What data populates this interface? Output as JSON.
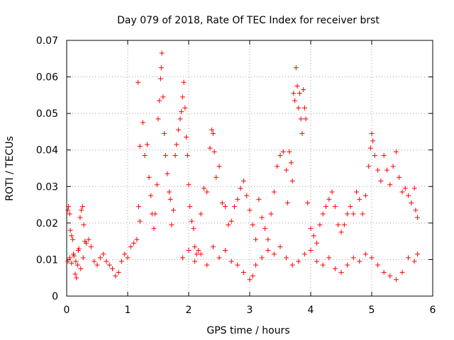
{
  "chart_data": {
    "type": "scatter",
    "title": "Day 079 of 2018, Rate Of TEC Index for receiver brst",
    "xlabel": "GPS time / hours",
    "ylabel": "ROTI / TECUs",
    "xlim": [
      0,
      6
    ],
    "ylim": [
      0,
      0.07
    ],
    "xticks": [
      0,
      1,
      2,
      3,
      4,
      5,
      6
    ],
    "yticks": [
      0,
      0.01,
      0.02,
      0.03,
      0.04,
      0.05,
      0.06,
      0.07
    ],
    "xtick_labels": [
      "0",
      "1",
      "2",
      "3",
      "4",
      "5",
      "6"
    ],
    "ytick_labels": [
      "0",
      "0.01",
      "0.02",
      "0.03",
      "0.04",
      "0.05",
      "0.06",
      "0.07"
    ],
    "grid": true,
    "marker": "+",
    "color": "#ff0000",
    "series": [
      {
        "name": "ROTI",
        "points": [
          [
            0.02,
            0.0235
          ],
          [
            0.03,
            0.0245
          ],
          [
            0.05,
            0.0225
          ],
          [
            0.06,
            0.018
          ],
          [
            0.08,
            0.0165
          ],
          [
            0.1,
            0.0155
          ],
          [
            0.12,
            0.011
          ],
          [
            0.14,
            0.006
          ],
          [
            0.16,
            0.005
          ],
          [
            0.18,
            0.0085
          ],
          [
            0.2,
            0.013
          ],
          [
            0.22,
            0.0215
          ],
          [
            0.24,
            0.0235
          ],
          [
            0.26,
            0.0245
          ],
          [
            0.28,
            0.0195
          ],
          [
            0.3,
            0.015
          ],
          [
            0.02,
            0.0095
          ],
          [
            0.05,
            0.0105
          ],
          [
            0.08,
            0.009
          ],
          [
            0.11,
            0.0115
          ],
          [
            0.15,
            0.0095
          ],
          [
            0.19,
            0.0125
          ],
          [
            0.23,
            0.0075
          ],
          [
            0.27,
            0.0105
          ],
          [
            0.32,
            0.0145
          ],
          [
            0.36,
            0.0155
          ],
          [
            0.4,
            0.0135
          ],
          [
            0.45,
            0.0095
          ],
          [
            0.5,
            0.0085
          ],
          [
            0.55,
            0.0105
          ],
          [
            0.6,
            0.0115
          ],
          [
            0.65,
            0.0095
          ],
          [
            0.7,
            0.0085
          ],
          [
            0.75,
            0.0075
          ],
          [
            0.8,
            0.0055
          ],
          [
            0.85,
            0.0065
          ],
          [
            0.9,
            0.0095
          ],
          [
            0.95,
            0.0115
          ],
          [
            1.0,
            0.0105
          ],
          [
            1.05,
            0.0135
          ],
          [
            1.1,
            0.0145
          ],
          [
            1.15,
            0.0155
          ],
          [
            1.18,
            0.0245
          ],
          [
            1.2,
            0.0205
          ],
          [
            1.17,
            0.0585
          ],
          [
            1.2,
            0.041
          ],
          [
            1.25,
            0.0475
          ],
          [
            1.28,
            0.0385
          ],
          [
            1.32,
            0.0415
          ],
          [
            1.35,
            0.0325
          ],
          [
            1.38,
            0.0275
          ],
          [
            1.4,
            0.0225
          ],
          [
            1.43,
            0.0185
          ],
          [
            1.45,
            0.0225
          ],
          [
            1.48,
            0.0305
          ],
          [
            1.5,
            0.0485
          ],
          [
            1.52,
            0.0535
          ],
          [
            1.54,
            0.0595
          ],
          [
            1.55,
            0.0625
          ],
          [
            1.56,
            0.0665
          ],
          [
            1.58,
            0.0545
          ],
          [
            1.6,
            0.0445
          ],
          [
            1.62,
            0.0385
          ],
          [
            1.65,
            0.0335
          ],
          [
            1.68,
            0.0285
          ],
          [
            1.7,
            0.0265
          ],
          [
            1.72,
            0.0195
          ],
          [
            1.75,
            0.0235
          ],
          [
            1.78,
            0.0385
          ],
          [
            1.8,
            0.0415
          ],
          [
            1.83,
            0.0455
          ],
          [
            1.86,
            0.0485
          ],
          [
            1.88,
            0.0505
          ],
          [
            1.9,
            0.0545
          ],
          [
            1.92,
            0.0585
          ],
          [
            1.94,
            0.0515
          ],
          [
            1.96,
            0.0435
          ],
          [
            1.98,
            0.0385
          ],
          [
            2.0,
            0.0305
          ],
          [
            2.02,
            0.0245
          ],
          [
            2.05,
            0.0205
          ],
          [
            2.08,
            0.0185
          ],
          [
            2.1,
            0.0135
          ],
          [
            2.13,
            0.0115
          ],
          [
            2.16,
            0.0125
          ],
          [
            2.2,
            0.0225
          ],
          [
            2.25,
            0.0295
          ],
          [
            2.3,
            0.0285
          ],
          [
            2.35,
            0.0405
          ],
          [
            2.38,
            0.0455
          ],
          [
            2.4,
            0.0445
          ],
          [
            2.42,
            0.0395
          ],
          [
            2.45,
            0.0325
          ],
          [
            2.5,
            0.0355
          ],
          [
            2.55,
            0.0255
          ],
          [
            2.6,
            0.0245
          ],
          [
            2.65,
            0.0195
          ],
          [
            2.7,
            0.0205
          ],
          [
            2.75,
            0.0245
          ],
          [
            2.8,
            0.0265
          ],
          [
            2.85,
            0.0295
          ],
          [
            2.9,
            0.0315
          ],
          [
            2.95,
            0.0275
          ],
          [
            3.0,
            0.0235
          ],
          [
            3.05,
            0.0195
          ],
          [
            3.1,
            0.0155
          ],
          [
            3.15,
            0.0265
          ],
          [
            3.2,
            0.0215
          ],
          [
            3.25,
            0.0185
          ],
          [
            3.3,
            0.0155
          ],
          [
            3.35,
            0.0225
          ],
          [
            3.4,
            0.0285
          ],
          [
            3.45,
            0.0355
          ],
          [
            3.5,
            0.0385
          ],
          [
            3.55,
            0.0395
          ],
          [
            3.6,
            0.0345
          ],
          [
            3.62,
            0.0255
          ],
          [
            3.65,
            0.0395
          ],
          [
            3.68,
            0.0365
          ],
          [
            3.7,
            0.0315
          ],
          [
            3.72,
            0.0555
          ],
          [
            3.74,
            0.0535
          ],
          [
            3.76,
            0.0625
          ],
          [
            3.78,
            0.0575
          ],
          [
            3.8,
            0.0515
          ],
          [
            3.82,
            0.0555
          ],
          [
            3.84,
            0.0485
          ],
          [
            3.86,
            0.0445
          ],
          [
            3.88,
            0.0565
          ],
          [
            3.9,
            0.0515
          ],
          [
            3.92,
            0.0485
          ],
          [
            3.95,
            0.0255
          ],
          [
            4.0,
            0.0185
          ],
          [
            4.05,
            0.0165
          ],
          [
            4.1,
            0.0145
          ],
          [
            4.15,
            0.0195
          ],
          [
            4.2,
            0.0225
          ],
          [
            4.25,
            0.0245
          ],
          [
            4.3,
            0.0265
          ],
          [
            4.35,
            0.0285
          ],
          [
            4.4,
            0.0245
          ],
          [
            4.45,
            0.0195
          ],
          [
            4.5,
            0.0175
          ],
          [
            4.55,
            0.0195
          ],
          [
            4.6,
            0.0225
          ],
          [
            4.65,
            0.0245
          ],
          [
            4.7,
            0.0225
          ],
          [
            4.75,
            0.0285
          ],
          [
            4.8,
            0.0265
          ],
          [
            4.85,
            0.0225
          ],
          [
            4.9,
            0.0275
          ],
          [
            4.95,
            0.0355
          ],
          [
            4.98,
            0.0405
          ],
          [
            5.0,
            0.0445
          ],
          [
            5.02,
            0.0425
          ],
          [
            5.05,
            0.0385
          ],
          [
            5.1,
            0.0345
          ],
          [
            5.15,
            0.0315
          ],
          [
            5.2,
            0.0385
          ],
          [
            5.25,
            0.0345
          ],
          [
            5.3,
            0.0305
          ],
          [
            5.35,
            0.0355
          ],
          [
            5.4,
            0.0395
          ],
          [
            5.45,
            0.0325
          ],
          [
            5.5,
            0.0285
          ],
          [
            5.55,
            0.0295
          ],
          [
            5.6,
            0.0275
          ],
          [
            5.65,
            0.0255
          ],
          [
            5.7,
            0.0295
          ],
          [
            5.72,
            0.0235
          ],
          [
            5.75,
            0.0215
          ],
          [
            1.9,
            0.0105
          ],
          [
            2.0,
            0.0125
          ],
          [
            2.1,
            0.0095
          ],
          [
            2.2,
            0.0115
          ],
          [
            2.3,
            0.0085
          ],
          [
            2.4,
            0.0135
          ],
          [
            2.5,
            0.0105
          ],
          [
            2.6,
            0.0125
          ],
          [
            2.7,
            0.0095
          ],
          [
            2.8,
            0.0085
          ],
          [
            2.9,
            0.0065
          ],
          [
            3.0,
            0.0045
          ],
          [
            3.05,
            0.0055
          ],
          [
            3.1,
            0.0085
          ],
          [
            3.2,
            0.0105
          ],
          [
            3.3,
            0.0125
          ],
          [
            3.4,
            0.0115
          ],
          [
            3.5,
            0.0135
          ],
          [
            3.6,
            0.0105
          ],
          [
            3.7,
            0.0085
          ],
          [
            3.8,
            0.0095
          ],
          [
            3.9,
            0.0115
          ],
          [
            4.0,
            0.0125
          ],
          [
            4.1,
            0.0095
          ],
          [
            4.2,
            0.0085
          ],
          [
            4.3,
            0.0105
          ],
          [
            4.4,
            0.0075
          ],
          [
            4.5,
            0.0065
          ],
          [
            4.6,
            0.0085
          ],
          [
            4.7,
            0.0105
          ],
          [
            4.8,
            0.0095
          ],
          [
            4.9,
            0.0115
          ],
          [
            5.0,
            0.0105
          ],
          [
            5.1,
            0.0085
          ],
          [
            5.2,
            0.0065
          ],
          [
            5.3,
            0.0055
          ],
          [
            5.4,
            0.0045
          ],
          [
            5.5,
            0.0065
          ],
          [
            5.6,
            0.0105
          ],
          [
            5.7,
            0.0095
          ],
          [
            5.75,
            0.0115
          ]
        ]
      }
    ]
  }
}
